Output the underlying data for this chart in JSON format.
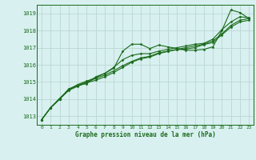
{
  "title": "Graphe pression niveau de la mer (hPa)",
  "bg_color": "#d8f0f0",
  "grid_color": "#b8d8d0",
  "line_color": "#1a6b1a",
  "xlim": [
    -0.5,
    23.5
  ],
  "ylim": [
    1012.5,
    1019.5
  ],
  "yticks": [
    1013,
    1014,
    1015,
    1016,
    1017,
    1018,
    1019
  ],
  "xticks": [
    0,
    1,
    2,
    3,
    4,
    5,
    6,
    7,
    8,
    9,
    10,
    11,
    12,
    13,
    14,
    15,
    16,
    17,
    18,
    19,
    20,
    21,
    22,
    23
  ],
  "series": [
    [
      1012.8,
      1013.5,
      1014.0,
      1014.6,
      1014.8,
      1014.9,
      1015.3,
      1015.5,
      1015.8,
      1016.8,
      1017.2,
      1017.2,
      1016.95,
      1017.15,
      1017.05,
      1016.95,
      1016.85,
      1016.85,
      1016.9,
      1017.05,
      1018.0,
      1019.2,
      1019.05,
      1018.7
    ],
    [
      1012.8,
      1013.5,
      1014.0,
      1014.55,
      1014.85,
      1015.05,
      1015.25,
      1015.5,
      1015.85,
      1016.3,
      1016.55,
      1016.65,
      1016.65,
      1016.8,
      1016.9,
      1017.0,
      1017.1,
      1017.2,
      1017.25,
      1017.5,
      1018.05,
      1018.5,
      1018.8,
      1018.75
    ],
    [
      1012.8,
      1013.5,
      1014.05,
      1014.55,
      1014.8,
      1015.0,
      1015.2,
      1015.4,
      1015.65,
      1015.95,
      1016.2,
      1016.4,
      1016.5,
      1016.7,
      1016.8,
      1016.9,
      1017.0,
      1017.1,
      1017.2,
      1017.4,
      1017.8,
      1018.3,
      1018.6,
      1018.7
    ],
    [
      1012.8,
      1013.5,
      1014.0,
      1014.5,
      1014.75,
      1014.95,
      1015.1,
      1015.3,
      1015.55,
      1015.85,
      1016.15,
      1016.35,
      1016.45,
      1016.65,
      1016.78,
      1016.88,
      1016.92,
      1017.0,
      1017.18,
      1017.3,
      1017.75,
      1018.2,
      1018.5,
      1018.6
    ]
  ]
}
